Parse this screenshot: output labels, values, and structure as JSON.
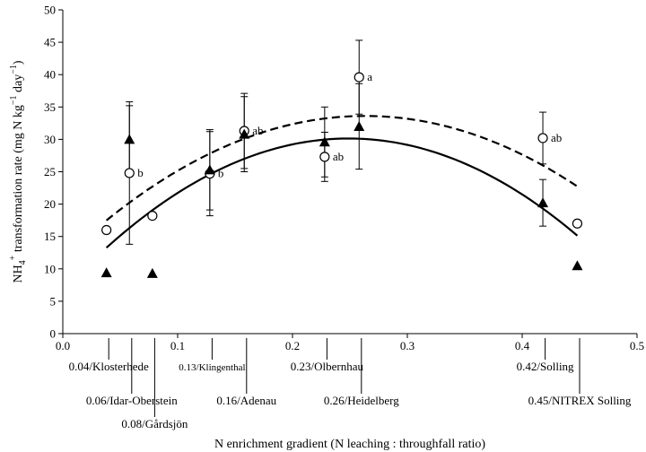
{
  "chart_data": {
    "type": "scatter",
    "xlabel": "N enrichment gradient (N leaching : throughfall ratio)",
    "ylabel_parts": {
      "base": "NH",
      "sub4": "4",
      "sup_plus": "+",
      "mid": " transformation rate (mg N kg",
      "sup_neg1a": "−1",
      "mid2": " day",
      "sup_neg1b": "−1",
      "end": ")"
    },
    "xlim": [
      0.0,
      0.5
    ],
    "ylim": [
      0,
      50
    ],
    "xticks": [
      "0.0",
      "0.1",
      "0.2",
      "0.3",
      "0.4",
      "0.5"
    ],
    "yticks": [
      "0",
      "5",
      "10",
      "15",
      "20",
      "25",
      "30",
      "35",
      "40",
      "45",
      "50"
    ],
    "series": [
      {
        "marker": "open-circle",
        "points": [
          {
            "x": 0.038,
            "y": 16.0
          },
          {
            "x": 0.058,
            "y": 24.8,
            "err": 11.0,
            "label": "b"
          },
          {
            "x": 0.078,
            "y": 18.2
          },
          {
            "x": 0.128,
            "y": 24.7,
            "err": 6.5,
            "label": "b"
          },
          {
            "x": 0.158,
            "y": 31.3,
            "err": 5.8,
            "label": "ab"
          },
          {
            "x": 0.228,
            "y": 27.3,
            "err": 3.8,
            "label": "ab"
          },
          {
            "x": 0.258,
            "y": 39.6,
            "err": 5.7,
            "label": "a"
          },
          {
            "x": 0.418,
            "y": 30.2,
            "err": 4.0,
            "label": "ab"
          },
          {
            "x": 0.448,
            "y": 17.0
          }
        ]
      },
      {
        "marker": "filled-triangle",
        "points": [
          {
            "x": 0.038,
            "y": 9.4
          },
          {
            "x": 0.058,
            "y": 30.0,
            "err": 5.2
          },
          {
            "x": 0.078,
            "y": 9.3
          },
          {
            "x": 0.128,
            "y": 25.3,
            "err": 6.2
          },
          {
            "x": 0.158,
            "y": 30.8,
            "err": 5.8
          },
          {
            "x": 0.228,
            "y": 29.6,
            "err": 5.4
          },
          {
            "x": 0.258,
            "y": 32.0,
            "err": 6.6
          },
          {
            "x": 0.418,
            "y": 20.2,
            "err": 3.6
          },
          {
            "x": 0.448,
            "y": 10.5
          }
        ]
      }
    ],
    "fits": [
      {
        "style": "dashed",
        "coef": [
          11.58,
          167.5,
          -318.3
        ],
        "x_range": [
          0.038,
          0.448
        ]
      },
      {
        "style": "solid",
        "coef": [
          6.64,
          188.7,
          -378.9
        ],
        "x_range": [
          0.038,
          0.448
        ]
      }
    ],
    "sites": [
      {
        "x": 0.04,
        "label": "0.04/Klosterhede",
        "row": 0
      },
      {
        "x": 0.06,
        "label": "0.06/Idar-Oberstein",
        "row": 1
      },
      {
        "x": 0.08,
        "label": "0.08/Gårdsjön",
        "row": 2
      },
      {
        "x": 0.13,
        "label": "0.13/Klingenthal",
        "row": 0,
        "small": true
      },
      {
        "x": 0.16,
        "label": "0.16/Adenau",
        "row": 1
      },
      {
        "x": 0.23,
        "label": "0.23/Olbernhau",
        "row": 0
      },
      {
        "x": 0.26,
        "label": "0.26/Heidelberg",
        "row": 1
      },
      {
        "x": 0.42,
        "label": "0.42/Solling",
        "row": 0
      },
      {
        "x": 0.45,
        "label": "0.45/NITREX Solling",
        "row": 1
      }
    ]
  }
}
